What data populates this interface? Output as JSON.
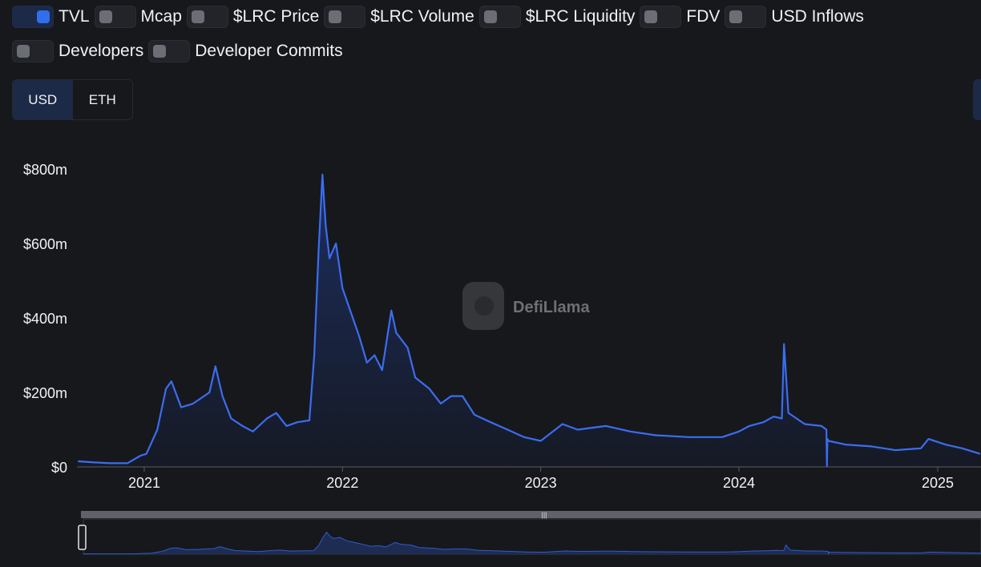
{
  "toggles_row1": [
    {
      "label": "TVL",
      "on": true
    },
    {
      "label": "Mcap",
      "on": false
    },
    {
      "label": "$LRC Price",
      "on": false
    },
    {
      "label": "$LRC Volume",
      "on": false
    },
    {
      "label": "$LRC Liquidity",
      "on": false
    },
    {
      "label": "FDV",
      "on": false
    },
    {
      "label": "USD Inflows",
      "on": false
    }
  ],
  "toggles_row2": [
    {
      "label": "Developers",
      "on": false
    },
    {
      "label": "Developer Commits",
      "on": false
    }
  ],
  "denomination": {
    "options": [
      "USD",
      "ETH"
    ],
    "selected": "USD"
  },
  "watermark": "DefiLlama",
  "colors": {
    "line": "#3b6df0",
    "background": "#17181c",
    "toggle_on": "#2f6fed"
  },
  "chart_data": {
    "type": "area",
    "series": [
      {
        "name": "TVL",
        "x": [
          "2020-09-01",
          "2020-10-01",
          "2020-11-01",
          "2020-12-01",
          "2020-12-25",
          "2021-01-05",
          "2021-01-25",
          "2021-02-10",
          "2021-02-20",
          "2021-03-10",
          "2021-04-01",
          "2021-05-01",
          "2021-05-12",
          "2021-05-25",
          "2021-06-10",
          "2021-07-01",
          "2021-07-20",
          "2021-08-15",
          "2021-09-01",
          "2021-09-20",
          "2021-10-10",
          "2021-11-01",
          "2021-11-10",
          "2021-11-18",
          "2021-11-25",
          "2021-12-01",
          "2021-12-08",
          "2021-12-20",
          "2022-01-01",
          "2022-01-20",
          "2022-02-01",
          "2022-02-15",
          "2022-03-01",
          "2022-03-15",
          "2022-04-01",
          "2022-04-10",
          "2022-05-01",
          "2022-05-15",
          "2022-06-10",
          "2022-07-01",
          "2022-07-20",
          "2022-08-10",
          "2022-09-01",
          "2022-10-01",
          "2022-11-01",
          "2022-12-01",
          "2023-01-01",
          "2023-02-10",
          "2023-03-10",
          "2023-05-01",
          "2023-06-15",
          "2023-08-01",
          "2023-10-01",
          "2023-12-01",
          "2024-01-01",
          "2024-01-20",
          "2024-02-15",
          "2024-03-05",
          "2024-03-20",
          "2024-03-24",
          "2024-04-01",
          "2024-05-01",
          "2024-06-01",
          "2024-06-10",
          "2024-06-11",
          "2024-06-12",
          "2024-06-14",
          "2024-07-15",
          "2024-09-01",
          "2024-10-15",
          "2024-12-01",
          "2024-12-15",
          "2025-01-15",
          "2025-02-15",
          "2025-03-20"
        ],
        "values": [
          15,
          12,
          10,
          10,
          30,
          35,
          100,
          210,
          230,
          160,
          170,
          200,
          270,
          190,
          130,
          110,
          95,
          130,
          145,
          110,
          120,
          125,
          300,
          580,
          785,
          650,
          560,
          600,
          480,
          400,
          350,
          280,
          300,
          260,
          420,
          360,
          320,
          240,
          210,
          170,
          190,
          190,
          140,
          120,
          100,
          80,
          70,
          115,
          100,
          110,
          95,
          85,
          80,
          80,
          95,
          110,
          120,
          135,
          130,
          330,
          145,
          115,
          110,
          100,
          2,
          75,
          70,
          60,
          55,
          45,
          50,
          75,
          60,
          50,
          35
        ]
      }
    ],
    "ylabel": "",
    "ylim": [
      0,
      800
    ],
    "y_ticks": [
      "$0",
      "$200m",
      "$400m",
      "$600m",
      "$800m"
    ],
    "y_tick_values": [
      0,
      200,
      400,
      600,
      800
    ],
    "x_ticks": [
      "2021",
      "2022",
      "2023",
      "2024",
      "2025"
    ],
    "x_tick_values": [
      "2021-01-01",
      "2022-01-01",
      "2023-01-01",
      "2024-01-01",
      "2025-01-01"
    ],
    "x_range": [
      "2020-09-01",
      "2025-03-20"
    ],
    "grid": false,
    "legend": "none"
  }
}
